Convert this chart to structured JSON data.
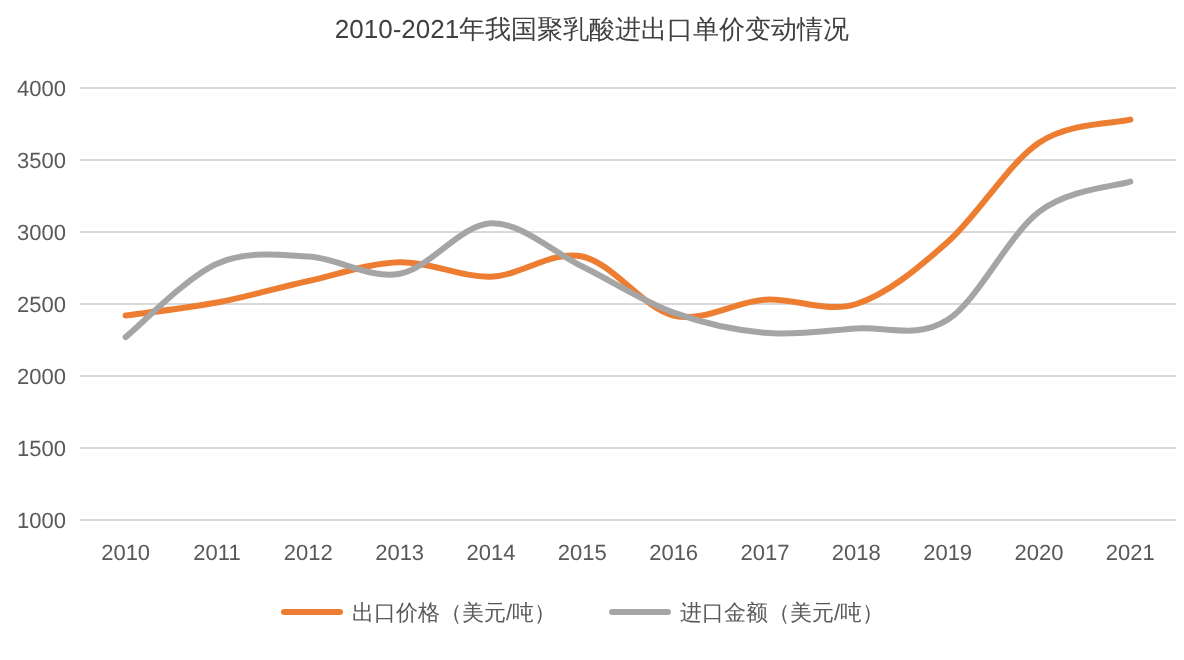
{
  "chart_data": {
    "type": "line",
    "title": "2010-2021年我国聚乳酸进出口单价变动情况",
    "categories": [
      "2010",
      "2011",
      "2012",
      "2013",
      "2014",
      "2015",
      "2016",
      "2017",
      "2018",
      "2019",
      "2020",
      "2021"
    ],
    "series": [
      {
        "name": "出口价格（美元/吨）",
        "color": "#ed7d31",
        "values": [
          2420,
          2510,
          2660,
          2790,
          2690,
          2830,
          2420,
          2530,
          2500,
          2930,
          3620,
          3780
        ]
      },
      {
        "name": "进口金额（美元/吨）",
        "color": "#a5a5a5",
        "values": [
          2270,
          2780,
          2830,
          2710,
          3060,
          2760,
          2440,
          2300,
          2330,
          2390,
          3140,
          3350
        ]
      }
    ],
    "ylim": [
      1000,
      4000
    ],
    "yticks": [
      1000,
      1500,
      2000,
      2500,
      3000,
      3500,
      4000
    ],
    "grid": "y",
    "legend": "bottom",
    "marker": "none",
    "line_style": "solid"
  }
}
